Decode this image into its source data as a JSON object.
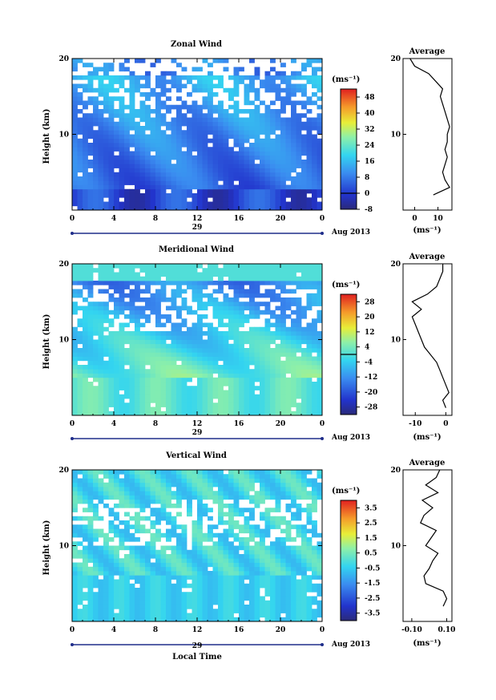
{
  "chart_data": [
    {
      "type": "heatmap",
      "title": "Zonal Wind",
      "ylabel": "Height (km)",
      "ylim": [
        0,
        20
      ],
      "xlim": [
        0,
        24
      ],
      "x_ticks": [
        "0",
        "4",
        "8",
        "12",
        "16",
        "20",
        "0"
      ],
      "y_ticks": [
        "10",
        "20"
      ],
      "date_label": "29",
      "month_label": "Aug 2013",
      "unit": "(ms⁻¹)",
      "colorbar_ticks": [
        "48",
        "40",
        "32",
        "24",
        "16",
        "8",
        "0",
        "-8"
      ],
      "colorbar_range": [
        -8,
        52
      ],
      "colorbar_zero_line": 0,
      "profile": {
        "title": "Average",
        "xlabel": "(ms⁻¹)",
        "x_ticks": [
          "0",
          "10"
        ],
        "xlim": [
          -5,
          16
        ],
        "height_km": [
          2,
          3,
          4,
          5,
          6,
          7,
          8,
          9,
          10,
          11,
          12,
          13,
          14,
          15,
          16,
          17,
          18,
          19,
          20
        ],
        "values": [
          8,
          15,
          13,
          12,
          13,
          14,
          13,
          14,
          14,
          15,
          14,
          13,
          12,
          11,
          12,
          9,
          6,
          0,
          -2
        ]
      }
    },
    {
      "type": "heatmap",
      "title": "Meridional Wind",
      "ylabel": "Height (km)",
      "ylim": [
        0,
        20
      ],
      "xlim": [
        0,
        24
      ],
      "x_ticks": [
        "0",
        "4",
        "8",
        "12",
        "16",
        "20",
        "0"
      ],
      "y_ticks": [
        "10",
        "20"
      ],
      "date_label": "29",
      "month_label": "Aug 2013",
      "unit": "(ms⁻¹)",
      "colorbar_ticks": [
        "28",
        "20",
        "12",
        "4",
        "-4",
        "-12",
        "-20",
        "-28"
      ],
      "colorbar_range": [
        -32,
        32
      ],
      "colorbar_zero_line": 0,
      "profile": {
        "title": "Average",
        "xlabel": "(ms⁻¹)",
        "x_ticks": [
          "-10",
          "0"
        ],
        "xlim": [
          -14,
          2
        ],
        "height_km": [
          1,
          2,
          3,
          4,
          5,
          6,
          7,
          8,
          9,
          10,
          11,
          12,
          13,
          14,
          15,
          16,
          17,
          18,
          19,
          20
        ],
        "values": [
          0,
          -1,
          1,
          0,
          -1,
          -2,
          -3,
          -5,
          -7,
          -8,
          -9,
          -10,
          -11,
          -8,
          -11,
          -6,
          -3,
          -2,
          -1,
          -1
        ]
      }
    },
    {
      "type": "heatmap",
      "title": "Vertical Wind",
      "ylabel": "Height (km)",
      "xlabel": "Local Time",
      "ylim": [
        0,
        20
      ],
      "xlim": [
        0,
        24
      ],
      "x_ticks": [
        "0",
        "4",
        "8",
        "12",
        "16",
        "20",
        "0"
      ],
      "y_ticks": [
        "10",
        "20"
      ],
      "date_label": "29",
      "month_label": "Aug 2013",
      "unit": "(ms⁻¹)",
      "colorbar_ticks": [
        "3.5",
        "2.5",
        "1.5",
        "0.5",
        "-0.5",
        "-1.5",
        "-2.5",
        "-3.5"
      ],
      "colorbar_range": [
        -4,
        4
      ],
      "profile": {
        "title": "Average",
        "xlabel": "(ms⁻¹)",
        "x_ticks": [
          "-0.10",
          "0.10"
        ],
        "xlim": [
          -0.15,
          0.13
        ],
        "height_km": [
          2,
          3,
          4,
          5,
          6,
          7,
          8,
          9,
          10,
          11,
          12,
          13,
          14,
          15,
          16,
          17,
          18,
          19,
          20
        ],
        "values": [
          0.08,
          0.1,
          0.08,
          -0.02,
          -0.03,
          0.0,
          0.02,
          0.05,
          -0.02,
          0.01,
          0.04,
          -0.05,
          -0.03,
          0.02,
          -0.04,
          0.05,
          -0.02,
          0.04,
          0.06
        ]
      }
    }
  ]
}
